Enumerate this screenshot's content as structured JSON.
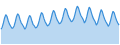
{
  "chart_data": {
    "type": "line",
    "color": "#3a8fd9",
    "categories": [
      null,
      null,
      null,
      null,
      null,
      null,
      null,
      null,
      null,
      null,
      null,
      null,
      null,
      null,
      null,
      null,
      null,
      null,
      null,
      null,
      null,
      null,
      null,
      null,
      null,
      null,
      null,
      null,
      null,
      null,
      null,
      null,
      null,
      null,
      null,
      null,
      null,
      null,
      null,
      null,
      null,
      null,
      null,
      null,
      null,
      null,
      null,
      null,
      null,
      null,
      null,
      null,
      null,
      null,
      null,
      null,
      null,
      null,
      null,
      null,
      null,
      null,
      null,
      null,
      null,
      null,
      null,
      null,
      null,
      null,
      null,
      null,
      null,
      null,
      null,
      null,
      null,
      null,
      null,
      null,
      null,
      null,
      null,
      null,
      null,
      null,
      null,
      null,
      null,
      null,
      null,
      null,
      null,
      null,
      null,
      null,
      null,
      null,
      null,
      null
    ],
    "values": [
      35,
      40,
      50,
      62,
      70,
      66,
      56,
      48,
      43,
      38,
      38,
      43,
      53,
      65,
      72,
      68,
      58,
      50,
      46,
      41,
      35,
      40,
      50,
      61,
      68,
      64,
      54,
      46,
      43,
      38,
      40,
      45,
      55,
      67,
      75,
      71,
      61,
      53,
      48,
      43,
      45,
      50,
      60,
      72,
      80,
      76,
      66,
      58,
      53,
      48,
      50,
      55,
      65,
      77,
      85,
      81,
      71,
      63,
      58,
      53,
      55,
      60,
      70,
      82,
      90,
      86,
      76,
      68,
      63,
      58,
      50,
      55,
      65,
      78,
      88,
      83,
      73,
      64,
      58,
      53,
      45,
      50,
      60,
      72,
      82,
      77,
      67,
      59,
      53,
      48,
      42,
      47,
      57,
      69,
      78,
      74,
      64,
      56,
      50,
      45
    ],
    "ylim": [
      0,
      100
    ],
    "yticks": [
      0,
      100
    ],
    "grid": false,
    "tick_labels": false
  }
}
